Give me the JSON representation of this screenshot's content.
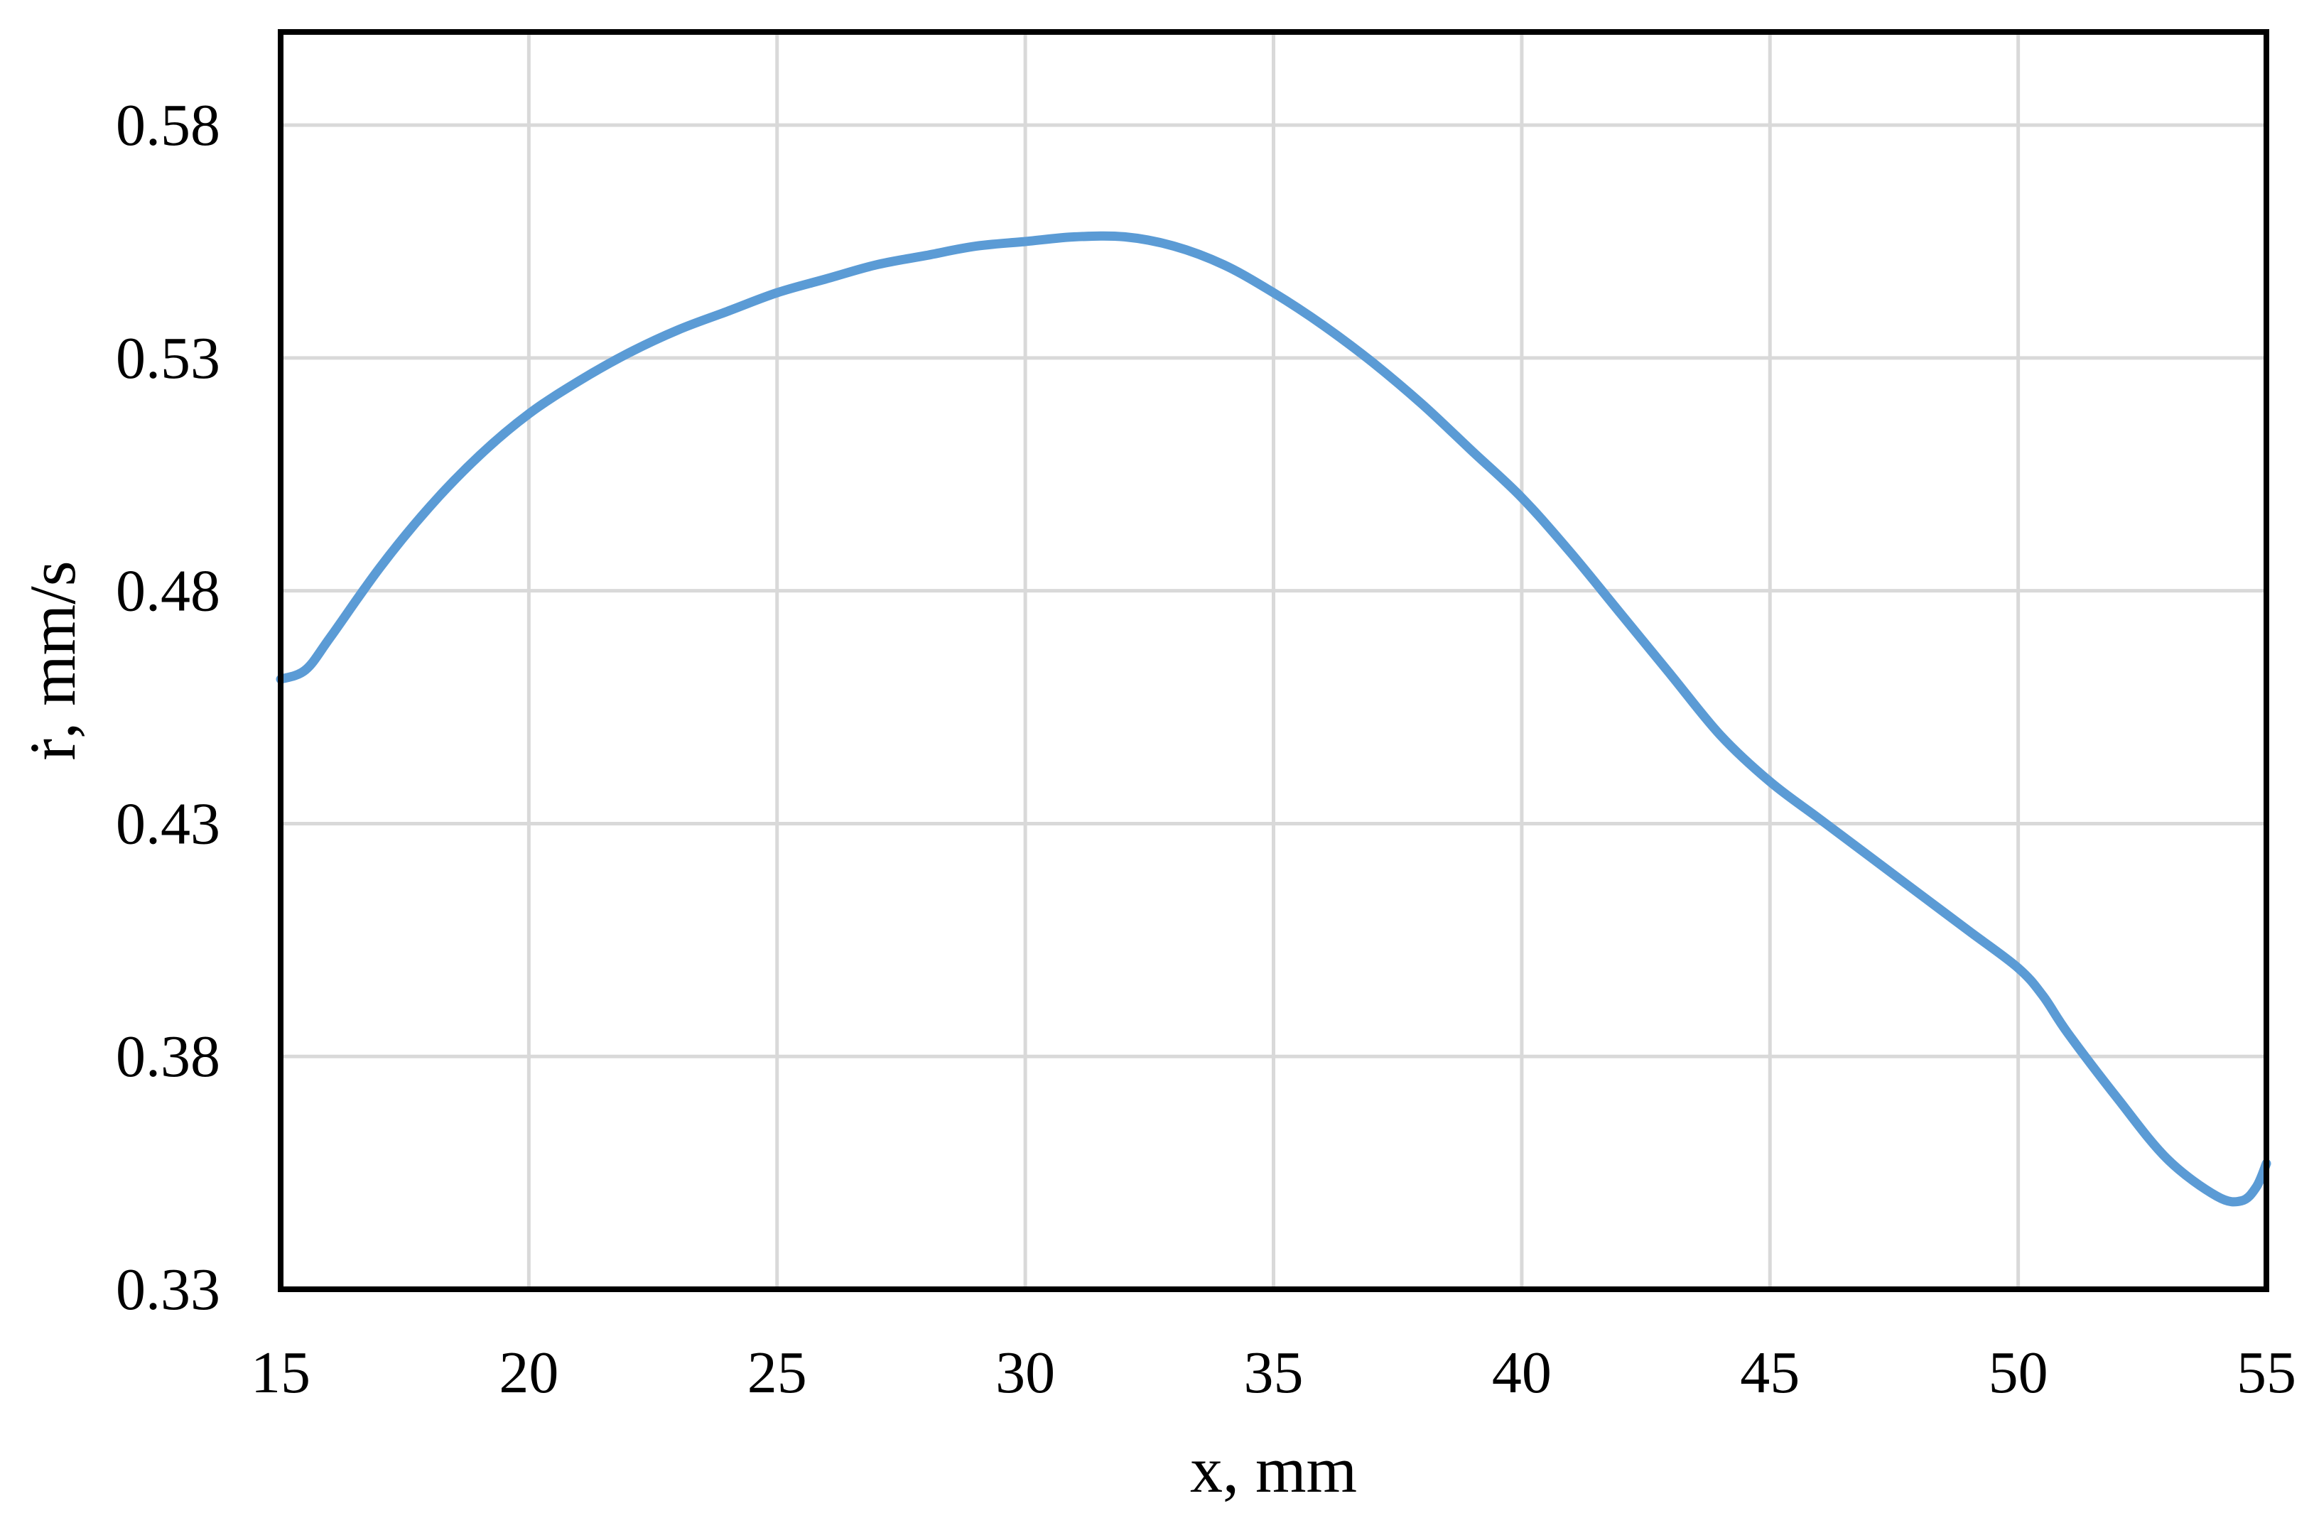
{
  "chart_data": {
    "type": "line",
    "title": "",
    "xlabel": "x, mm",
    "ylabel": "ṙ, mm/s",
    "xlim": [
      15,
      55
    ],
    "ylim": [
      0.33,
      0.6
    ],
    "x_ticks": [
      15,
      20,
      25,
      30,
      35,
      40,
      45,
      50,
      55
    ],
    "x_tick_labels": [
      "15",
      "20",
      "25",
      "30",
      "35",
      "40",
      "45",
      "50",
      "55"
    ],
    "y_ticks": [
      0.33,
      0.38,
      0.43,
      0.48,
      0.53,
      0.58
    ],
    "y_tick_labels": [
      "0.33",
      "0.38",
      "0.43",
      "0.48",
      "0.53",
      "0.58"
    ],
    "grid": true,
    "legend": "none",
    "series": [
      {
        "color": "#5b9bd5",
        "x": [
          15.0,
          15.5,
          16.0,
          17.0,
          18.0,
          19.0,
          20.0,
          21.0,
          22.0,
          23.0,
          24.0,
          25.0,
          26.0,
          27.0,
          28.0,
          29.0,
          30.0,
          31.0,
          32.0,
          33.0,
          34.0,
          35.0,
          36.0,
          37.0,
          38.0,
          39.0,
          40.0,
          41.0,
          42.0,
          43.0,
          44.0,
          45.0,
          46.0,
          47.0,
          48.0,
          49.0,
          50.0,
          50.5,
          51.0,
          52.0,
          53.0,
          54.0,
          54.5,
          54.8,
          55.0
        ],
        "y": [
          0.461,
          0.463,
          0.47,
          0.485,
          0.498,
          0.509,
          0.518,
          0.525,
          0.531,
          0.536,
          0.54,
          0.544,
          0.547,
          0.55,
          0.552,
          0.554,
          0.555,
          0.556,
          0.556,
          0.554,
          0.55,
          0.544,
          0.537,
          0.529,
          0.52,
          0.51,
          0.5,
          0.488,
          0.475,
          0.462,
          0.449,
          0.439,
          0.431,
          0.423,
          0.415,
          0.407,
          0.399,
          0.393,
          0.385,
          0.371,
          0.358,
          0.35,
          0.349,
          0.352,
          0.357
        ]
      }
    ]
  }
}
